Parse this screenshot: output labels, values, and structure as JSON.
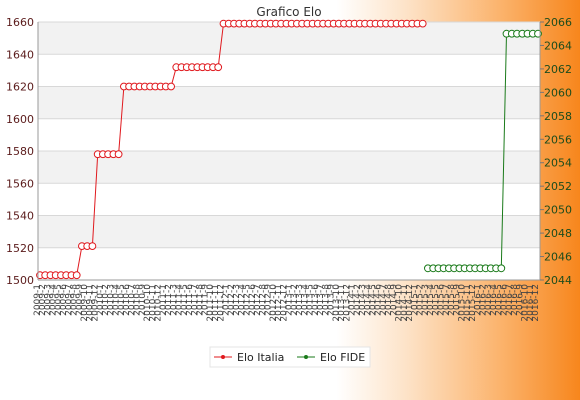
{
  "chart_data": {
    "type": "line",
    "title": "Grafico Elo",
    "categories": [
      "2009-1",
      "2009-2",
      "2009-3",
      "2009-4",
      "2009-5",
      "2009-6",
      "2009-7",
      "2009-8",
      "2009-9",
      "2009-10",
      "2009-11",
      "2009-12",
      "2010-1",
      "2010-2",
      "2010-3",
      "2010-4",
      "2010-5",
      "2010-6",
      "2010-7",
      "2010-8",
      "2010-9",
      "2010-10",
      "2010-11",
      "2010-12",
      "2011-1",
      "2011-2",
      "2011-3",
      "2011-4",
      "2011-5",
      "2011-6",
      "2011-7",
      "2011-8",
      "2011-9",
      "2011-10",
      "2011-11",
      "2011-12",
      "2012-1",
      "2012-2",
      "2012-3",
      "2012-4",
      "2012-5",
      "2012-6",
      "2012-7",
      "2012-8",
      "2012-9",
      "2012-10",
      "2012-11",
      "2012-12",
      "2013-1",
      "2013-2",
      "2013-3",
      "2013-4",
      "2013-5",
      "2013-6",
      "2013-7",
      "2013-8",
      "2013-9",
      "2013-10",
      "2013-11",
      "2013-12",
      "2014-1",
      "2014-2",
      "2014-3",
      "2014-4",
      "2014-5",
      "2014-6",
      "2014-7",
      "2014-8",
      "2014-9",
      "2014-10",
      "2014-11",
      "2014-12",
      "2015-1",
      "2015-2",
      "2015-3",
      "2015-4",
      "2015-5",
      "2015-6",
      "2015-7",
      "2015-8",
      "2015-9",
      "2015-10",
      "2015-11",
      "2015-12",
      "2016-1",
      "2016-2",
      "2016-3",
      "2016-4",
      "2016-5",
      "2016-6",
      "2016-7",
      "2016-8",
      "2016-9",
      "2016-10",
      "2016-11",
      "2016-12"
    ],
    "series": [
      {
        "name": "Elo Italia",
        "axis": "left",
        "color": "#e0191e",
        "values": [
          1503,
          1503,
          1503,
          1503,
          1503,
          1503,
          1503,
          1503,
          1521,
          1521,
          1521,
          1578,
          1578,
          1578,
          1578,
          1578,
          1620,
          1620,
          1620,
          1620,
          1620,
          1620,
          1620,
          1620,
          1620,
          1620,
          1632,
          1632,
          1632,
          1632,
          1632,
          1632,
          1632,
          1632,
          1632,
          1659,
          1659,
          1659,
          1659,
          1659,
          1659,
          1659,
          1659,
          1659,
          1659,
          1659,
          1659,
          1659,
          1659,
          1659,
          1659,
          1659,
          1659,
          1659,
          1659,
          1659,
          1659,
          1659,
          1659,
          1659,
          1659,
          1659,
          1659,
          1659,
          1659,
          1659,
          1659,
          1659,
          1659,
          1659,
          1659,
          1659,
          1659,
          1659,
          null,
          null,
          null,
          null,
          null,
          null,
          null,
          null,
          null,
          null,
          null,
          null,
          null,
          null,
          null,
          null,
          null,
          null,
          null,
          null,
          null,
          null
        ]
      },
      {
        "name": "Elo FIDE",
        "axis": "right",
        "color": "#1a7a1a",
        "values": [
          null,
          null,
          null,
          null,
          null,
          null,
          null,
          null,
          null,
          null,
          null,
          null,
          null,
          null,
          null,
          null,
          null,
          null,
          null,
          null,
          null,
          null,
          null,
          null,
          null,
          null,
          null,
          null,
          null,
          null,
          null,
          null,
          null,
          null,
          null,
          null,
          null,
          null,
          null,
          null,
          null,
          null,
          null,
          null,
          null,
          null,
          null,
          null,
          null,
          null,
          null,
          null,
          null,
          null,
          null,
          null,
          null,
          null,
          null,
          null,
          null,
          null,
          null,
          null,
          null,
          null,
          null,
          null,
          null,
          null,
          null,
          null,
          null,
          null,
          2045,
          2045,
          2045,
          2045,
          2045,
          2045,
          2045,
          2045,
          2045,
          2045,
          2045,
          2045,
          2045,
          2045,
          2045,
          2065,
          2065,
          2065,
          2065,
          2065,
          2065,
          2065
        ]
      }
    ],
    "y_left": {
      "range": [
        1500,
        1660
      ],
      "ticks": [
        1500,
        1520,
        1540,
        1560,
        1580,
        1600,
        1620,
        1640,
        1660
      ]
    },
    "y_right": {
      "range": [
        2044,
        2066
      ],
      "ticks": [
        2044,
        2046,
        2048,
        2050,
        2052,
        2054,
        2056,
        2058,
        2060,
        2062,
        2064,
        2066
      ]
    },
    "grid": true,
    "legend_position": "bottom",
    "colors": {
      "plot_band": "#f2f2f2",
      "grid": "#d8d8d8",
      "legend_bg": "#ffffff"
    }
  }
}
